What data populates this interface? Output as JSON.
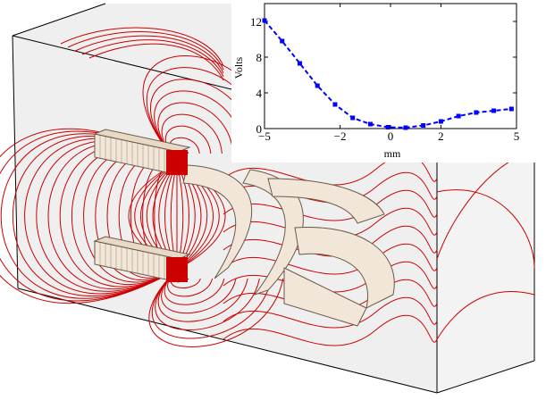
{
  "chart_data": {
    "type": "line",
    "title": "",
    "xlabel": "mm",
    "ylabel": "Volts",
    "xlim": [
      -5,
      5
    ],
    "ylim": [
      0,
      14
    ],
    "x_ticks": [
      -5,
      -2,
      0,
      2,
      5
    ],
    "x_tick_labels": [
      "−5",
      "−2",
      "0",
      "2",
      "5"
    ],
    "y_ticks": [
      0,
      4,
      8,
      12
    ],
    "y_tick_labels": [
      "0",
      "4",
      "8",
      "12"
    ],
    "grid": false,
    "legend": "none",
    "series": [
      {
        "line_style": "dashed",
        "marker": "square",
        "color": "#0000ff",
        "x": [
          -5,
          -4.3,
          -3.6,
          -2.9,
          -2.2,
          -1.5,
          -0.8,
          -0.1,
          0.6,
          1.3,
          2.0,
          2.7,
          3.4,
          4.1,
          4.8
        ],
        "y": [
          12.1,
          9.8,
          7.3,
          4.8,
          2.7,
          1.2,
          0.5,
          0.15,
          0.1,
          0.35,
          0.8,
          1.4,
          1.8,
          2.0,
          2.2
        ]
      }
    ]
  },
  "scene": {
    "description_color_contours": "#cc0000",
    "box_fill": "#efefef",
    "electrode_fill": "#f2e6d8"
  }
}
